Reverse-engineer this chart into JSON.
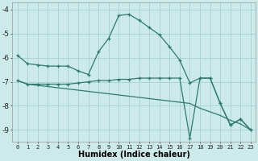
{
  "xlabel": "Humidex (Indice chaleur)",
  "bg_color": "#cceaea",
  "grid_color": "#aad4d4",
  "line_color": "#2d7a6e",
  "xlim": [
    -0.5,
    23.5
  ],
  "ylim": [
    -9.5,
    -3.7
  ],
  "yticks": [
    -9,
    -8,
    -7,
    -6,
    -5,
    -4
  ],
  "xticks": [
    0,
    1,
    2,
    3,
    4,
    5,
    6,
    7,
    8,
    9,
    10,
    11,
    12,
    13,
    14,
    15,
    16,
    17,
    18,
    19,
    20,
    21,
    22,
    23
  ],
  "curve1_x": [
    0,
    1,
    2,
    3,
    4,
    5,
    6,
    7,
    8,
    9,
    10,
    11,
    12,
    13,
    14,
    15,
    16,
    17,
    18,
    19,
    20,
    21,
    22,
    23
  ],
  "curve1_y": [
    -5.9,
    -6.25,
    -6.3,
    -6.35,
    -6.35,
    -6.35,
    -6.55,
    -6.7,
    -5.75,
    -5.2,
    -4.25,
    -4.2,
    -4.45,
    -4.75,
    -5.05,
    -5.55,
    -6.1,
    -7.05,
    -6.85,
    -6.85,
    -7.9,
    -8.8,
    -8.55,
    -9.0
  ],
  "curve2_x": [
    0,
    1,
    2,
    3,
    4,
    5,
    6,
    7,
    8,
    9,
    10,
    11,
    12,
    13,
    14,
    15,
    16,
    17,
    18,
    19,
    20,
    21,
    22,
    23
  ],
  "curve2_y": [
    -6.95,
    -7.1,
    -7.1,
    -7.1,
    -7.1,
    -7.1,
    -7.05,
    -7.0,
    -6.95,
    -6.95,
    -6.9,
    -6.9,
    -6.85,
    -6.85,
    -6.85,
    -6.85,
    -6.85,
    -9.35,
    -6.85,
    -6.85,
    -7.9,
    -8.8,
    -8.55,
    -9.0
  ],
  "curve3_x": [
    0,
    1,
    2,
    3,
    4,
    5,
    6,
    7,
    8,
    9,
    10,
    11,
    12,
    13,
    14,
    15,
    16,
    17,
    18,
    19,
    20,
    21,
    22,
    23
  ],
  "curve3_y": [
    -6.95,
    -7.1,
    -7.15,
    -7.2,
    -7.25,
    -7.3,
    -7.35,
    -7.4,
    -7.45,
    -7.5,
    -7.55,
    -7.6,
    -7.65,
    -7.7,
    -7.75,
    -7.8,
    -7.85,
    -7.9,
    -8.1,
    -8.25,
    -8.4,
    -8.6,
    -8.75,
    -9.0
  ]
}
